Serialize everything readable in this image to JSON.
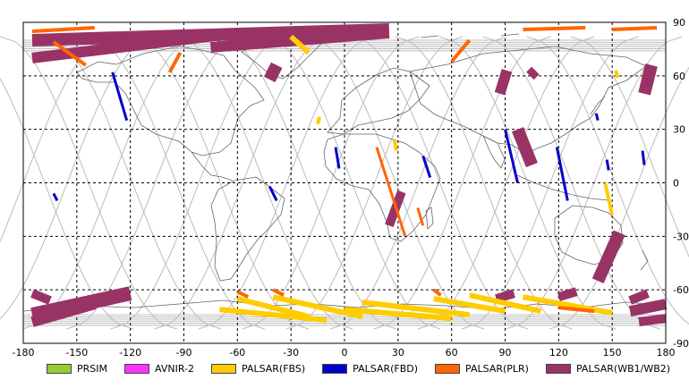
{
  "map": {
    "x_ticks": [
      "-180",
      "-150",
      "-120",
      "-90",
      "-60",
      "-30",
      "0",
      "30",
      "60",
      "90",
      "120",
      "150",
      "180"
    ],
    "y_ticks": [
      "90",
      "60",
      "30",
      "0",
      "-30",
      "-60",
      "-90"
    ],
    "x_range": [
      -180,
      180
    ],
    "y_range": [
      -90,
      90
    ],
    "grid": "dashed"
  },
  "legend": {
    "items": [
      {
        "label": "PRSIM",
        "color": "#99cc33"
      },
      {
        "label": "AVNIR-2",
        "color": "#ff33ff"
      },
      {
        "label": "PALSAR(FBS)",
        "color": "#ffcc00"
      },
      {
        "label": "PALSAR(FBD)",
        "color": "#0000cc"
      },
      {
        "label": "PALSAR(PLR)",
        "color": "#ff6600"
      },
      {
        "label": "PALSAR(WB1/WB2)",
        "color": "#993366"
      }
    ]
  },
  "observations": {
    "wb": [
      {
        "lon1": -175,
        "lat1": 80,
        "lon2": 25,
        "lat2": 86,
        "w": 7
      },
      {
        "lon1": -175,
        "lat1": 70,
        "lon2": -60,
        "lat2": 84,
        "w": 6
      },
      {
        "lon1": -75,
        "lat1": 76,
        "lon2": 25,
        "lat2": 84,
        "w": 6
      },
      {
        "lon1": -42,
        "lat1": 58,
        "lon2": -38,
        "lat2": 66,
        "w": 7
      },
      {
        "lon1": 87,
        "lat1": 50,
        "lon2": 91,
        "lat2": 63,
        "w": 6
      },
      {
        "lon1": 104,
        "lat1": 60,
        "lon2": 107,
        "lat2": 63,
        "w": 6
      },
      {
        "lon1": 168,
        "lat1": 50,
        "lon2": 172,
        "lat2": 66,
        "w": 7
      },
      {
        "lon1": 105,
        "lat1": 10,
        "lon2": 97,
        "lat2": 30,
        "w": 7
      },
      {
        "lon1": 25,
        "lat1": -24,
        "lon2": 32,
        "lat2": -5,
        "w": 5
      },
      {
        "lon1": 142,
        "lat1": -55,
        "lon2": 154,
        "lat2": -28,
        "w": 7
      },
      {
        "lon1": -175,
        "lat1": -62,
        "lon2": -165,
        "lat2": -66,
        "w": 5
      },
      {
        "lon1": -175,
        "lat1": -74,
        "lon2": -120,
        "lat2": -62,
        "w": 8
      },
      {
        "lon1": -175,
        "lat1": -78,
        "lon2": -140,
        "lat2": -68,
        "w": 6
      },
      {
        "lon1": 85,
        "lat1": -65,
        "lon2": 95,
        "lat2": -62,
        "w": 5
      },
      {
        "lon1": 120,
        "lat1": -64,
        "lon2": 130,
        "lat2": -61,
        "w": 5
      },
      {
        "lon1": 160,
        "lat1": -66,
        "lon2": 170,
        "lat2": -62,
        "w": 5
      },
      {
        "lon1": 160,
        "lat1": -72,
        "lon2": 180,
        "lat2": -68,
        "w": 6
      },
      {
        "lon1": 165,
        "lat1": -78,
        "lon2": 180,
        "lat2": -76,
        "w": 5
      }
    ],
    "fbd": [
      {
        "lon1": -130,
        "lat1": 62,
        "lon2": -122,
        "lat2": 35,
        "w": 1.5
      },
      {
        "lon1": -163,
        "lat1": -6,
        "lon2": -161,
        "lat2": -10,
        "w": 1.5
      },
      {
        "lon1": -42,
        "lat1": -2,
        "lon2": -38,
        "lat2": -10,
        "w": 1.5
      },
      {
        "lon1": -5,
        "lat1": 20,
        "lon2": -3,
        "lat2": 8,
        "w": 1.5
      },
      {
        "lon1": 44,
        "lat1": 15,
        "lon2": 48,
        "lat2": 3,
        "w": 1.5
      },
      {
        "lon1": 90,
        "lat1": 30,
        "lon2": 97,
        "lat2": 0,
        "w": 1.5
      },
      {
        "lon1": 119,
        "lat1": 20,
        "lon2": 125,
        "lat2": -10,
        "w": 1.5
      },
      {
        "lon1": 141,
        "lat1": 39,
        "lon2": 142,
        "lat2": 35,
        "w": 1.5
      },
      {
        "lon1": 147,
        "lat1": 13,
        "lon2": 148,
        "lat2": 7,
        "w": 1.5
      },
      {
        "lon1": 167,
        "lat1": 18,
        "lon2": 168,
        "lat2": 10,
        "w": 1.5
      }
    ],
    "plr": [
      {
        "lon1": -175,
        "lat1": 85,
        "lon2": -140,
        "lat2": 87,
        "w": 2
      },
      {
        "lon1": -98,
        "lat1": 62,
        "lon2": -92,
        "lat2": 73,
        "w": 2
      },
      {
        "lon1": -145,
        "lat1": 66,
        "lon2": -163,
        "lat2": 79,
        "w": 2
      },
      {
        "lon1": 60,
        "lat1": 68,
        "lon2": 70,
        "lat2": 80,
        "w": 2
      },
      {
        "lon1": 100,
        "lat1": 86,
        "lon2": 135,
        "lat2": 87,
        "w": 2
      },
      {
        "lon1": 150,
        "lat1": 86,
        "lon2": 175,
        "lat2": 87,
        "w": 2
      },
      {
        "lon1": 18,
        "lat1": 20,
        "lon2": 34,
        "lat2": -30,
        "w": 1.5
      },
      {
        "lon1": 41,
        "lat1": -14,
        "lon2": 44,
        "lat2": -24,
        "w": 1.5
      },
      {
        "lon1": -60,
        "lat1": -61,
        "lon2": -54,
        "lat2": -64,
        "w": 2
      },
      {
        "lon1": -40,
        "lat1": -60,
        "lon2": -34,
        "lat2": -63,
        "w": 2
      },
      {
        "lon1": 50,
        "lat1": -60,
        "lon2": 54,
        "lat2": -63,
        "w": 2
      },
      {
        "lon1": 120,
        "lat1": -70,
        "lon2": 140,
        "lat2": -72,
        "w": 2
      }
    ],
    "fbs": [
      {
        "lon1": -70,
        "lat1": -71,
        "lon2": -10,
        "lat2": -77,
        "w": 3
      },
      {
        "lon1": -60,
        "lat1": -65,
        "lon2": -20,
        "lat2": -75,
        "w": 3
      },
      {
        "lon1": -40,
        "lat1": -64,
        "lon2": 10,
        "lat2": -75,
        "w": 3
      },
      {
        "lon1": 0,
        "lat1": -71,
        "lon2": 60,
        "lat2": -76,
        "w": 3
      },
      {
        "lon1": 10,
        "lat1": -67,
        "lon2": 70,
        "lat2": -74,
        "w": 3
      },
      {
        "lon1": 50,
        "lat1": -65,
        "lon2": 90,
        "lat2": -72,
        "w": 3
      },
      {
        "lon1": 70,
        "lat1": -63,
        "lon2": 110,
        "lat2": -72,
        "w": 3
      },
      {
        "lon1": 100,
        "lat1": -64,
        "lon2": 150,
        "lat2": -73,
        "w": 3
      },
      {
        "lon1": -30,
        "lat1": 82,
        "lon2": -20,
        "lat2": 73,
        "w": 3
      },
      {
        "lon1": -15,
        "lat1": 33,
        "lon2": -14,
        "lat2": 37,
        "w": 2
      },
      {
        "lon1": 28,
        "lat1": 24,
        "lon2": 29,
        "lat2": 18,
        "w": 2
      },
      {
        "lon1": 152,
        "lat1": 63,
        "lon2": 153,
        "lat2": 59,
        "w": 2
      },
      {
        "lon1": 146,
        "lat1": 0,
        "lon2": 150,
        "lat2": -18,
        "w": 2
      }
    ]
  }
}
